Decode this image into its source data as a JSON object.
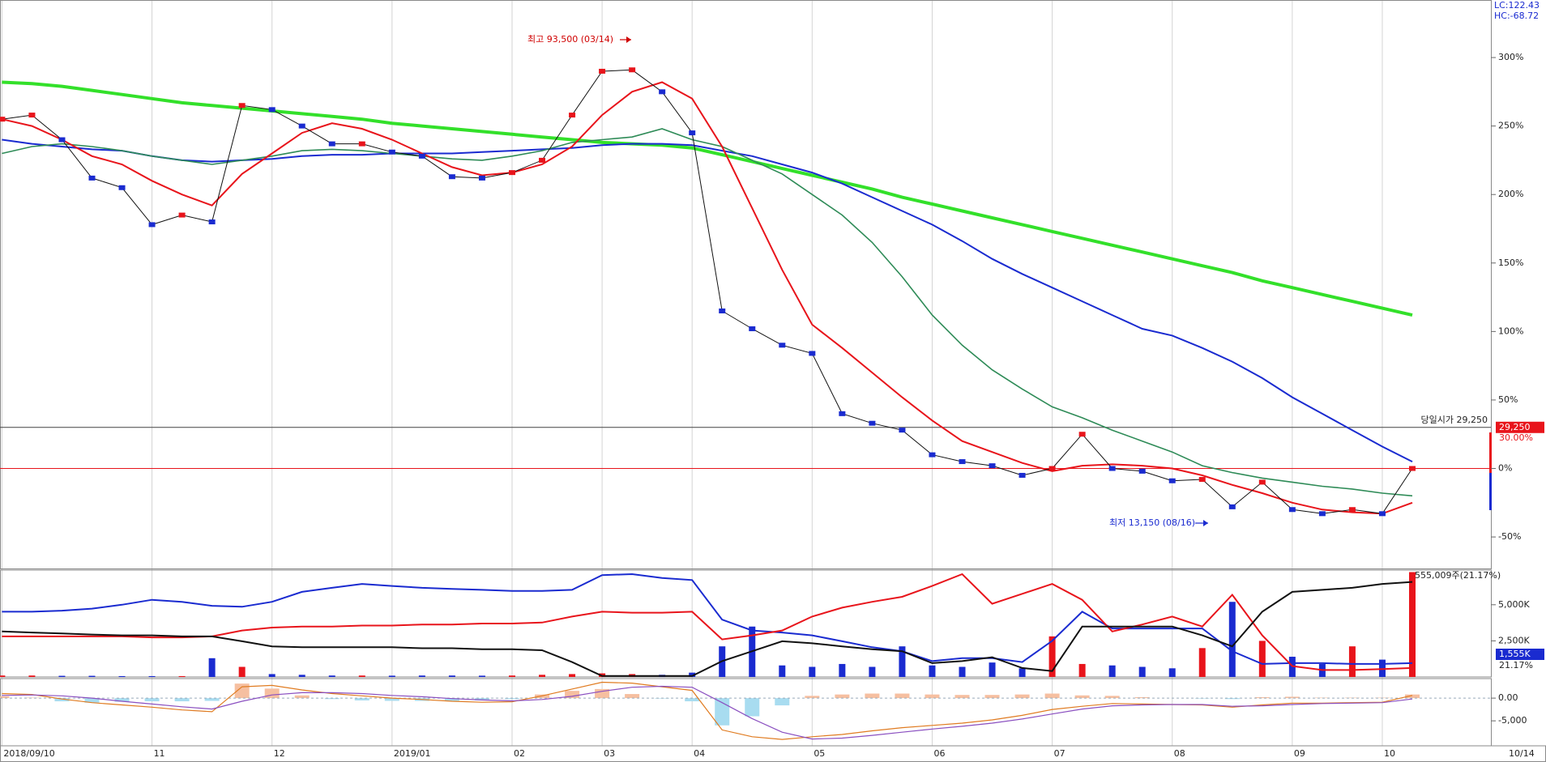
{
  "top_right": {
    "lc": "LC:122.43",
    "hc": "HC:-68.72"
  },
  "x_end_label": "10/14",
  "chart_data": [
    {
      "type": "line",
      "categories": [
        "2018/09/10",
        null,
        null,
        null,
        null,
        "11",
        null,
        null,
        null,
        "12",
        null,
        null,
        null,
        "2019/01",
        null,
        null,
        null,
        "02",
        null,
        null,
        "03",
        null,
        null,
        "04",
        null,
        null,
        null,
        "05",
        null,
        null,
        null,
        "06",
        null,
        null,
        null,
        "07",
        null,
        null,
        null,
        "08",
        null,
        null,
        null,
        "09",
        null,
        null,
        "10",
        null
      ],
      "ylim": [
        -73,
        342
      ],
      "yticks": [
        {
          "value": 300,
          "label": "300%"
        },
        {
          "value": 250,
          "label": "250%"
        },
        {
          "value": 200,
          "label": "200%"
        },
        {
          "value": 150,
          "label": "150%"
        },
        {
          "value": 100,
          "label": "100%"
        },
        {
          "value": 50,
          "label": "50%"
        },
        {
          "value": 0,
          "label": "0%"
        },
        {
          "value": -50,
          "label": "-50%"
        }
      ],
      "x_grid": true,
      "zero_line_color": "#e8141b",
      "up_color": "#e8141b",
      "down_color": "#1a2bd0",
      "series": [
        {
          "color": "#33e02a",
          "line_width": 4,
          "values": [
            282,
            281,
            279,
            276,
            273,
            270,
            267,
            265,
            263,
            261,
            259,
            257,
            255,
            252,
            250,
            248,
            246,
            244,
            242,
            240,
            238,
            237,
            236,
            234,
            229,
            224,
            219,
            214,
            209,
            204,
            198,
            193,
            188,
            183,
            178,
            173,
            168,
            163,
            158,
            153,
            148,
            143,
            137,
            132,
            127,
            122,
            117,
            112
          ]
        },
        {
          "color": "#1a2bd0",
          "line_width": 2,
          "values": [
            240,
            237,
            235,
            233,
            232,
            228,
            225,
            224,
            225,
            226,
            228,
            229,
            229,
            230,
            230,
            230,
            231,
            232,
            233,
            234,
            236,
            237,
            237,
            236,
            232,
            228,
            222,
            216,
            208,
            198,
            188,
            178,
            166,
            153,
            142,
            132,
            122,
            112,
            102,
            97,
            88,
            78,
            66,
            52,
            40,
            28,
            16,
            5
          ]
        },
        {
          "color": "#2e8b57",
          "line_width": 1.6,
          "values": [
            230,
            235,
            237,
            235,
            232,
            228,
            225,
            222,
            225,
            228,
            232,
            233,
            232,
            230,
            228,
            226,
            225,
            228,
            232,
            238,
            240,
            242,
            248,
            240,
            235,
            225,
            215,
            200,
            185,
            165,
            140,
            112,
            90,
            72,
            58,
            45,
            37,
            28,
            20,
            12,
            2,
            -3,
            -7,
            -10,
            -13,
            -15,
            -18,
            -20
          ]
        },
        {
          "color": "#e8141b",
          "line_width": 2,
          "values": [
            255,
            250,
            240,
            228,
            222,
            210,
            200,
            192,
            215,
            230,
            245,
            252,
            248,
            240,
            230,
            220,
            214,
            216,
            222,
            235,
            258,
            275,
            282,
            270,
            235,
            190,
            145,
            105,
            88,
            70,
            52,
            35,
            20,
            12,
            4,
            -2,
            2,
            3,
            2,
            0,
            -5,
            -12,
            -18,
            -25,
            -30,
            -32,
            -33,
            -25
          ]
        },
        {
          "color": "#111111",
          "line_width": 1,
          "markers": true,
          "values": [
            255,
            258,
            240,
            212,
            205,
            178,
            185,
            180,
            265,
            262,
            250,
            237,
            237,
            231,
            228,
            213,
            212,
            216,
            225,
            258,
            290,
            291,
            275,
            245,
            115,
            102,
            90,
            84,
            40,
            33,
            28,
            10,
            5,
            2,
            -5,
            0,
            25,
            0,
            -2,
            -9,
            -8,
            -28,
            -10,
            -30,
            -33,
            -30,
            -33,
            0
          ]
        }
      ],
      "annotations": [
        {
          "text": "최고 93,500 (03/14)",
          "color": "#d00000"
        },
        {
          "text": "최저 13,150 (08/16)",
          "color": "#1a2bd0"
        }
      ],
      "open_line": {
        "value": 30,
        "label": "당일시가 29,250",
        "tag": "29,250",
        "pct": "30.00%"
      }
    },
    {
      "type": "bar",
      "ylim": [
        0,
        7400
      ],
      "yticks": [
        {
          "value": 5000,
          "label": "5,000K"
        },
        {
          "value": 2500,
          "label": "2,500K"
        }
      ],
      "values": [
        100,
        100,
        80,
        80,
        60,
        60,
        60,
        1300,
        700,
        200,
        150,
        100,
        100,
        90,
        100,
        100,
        90,
        100,
        150,
        200,
        250,
        200,
        150,
        300,
        2120,
        3490,
        800,
        700,
        900,
        700,
        2120,
        800,
        700,
        1000,
        600,
        2810,
        900,
        800,
        700,
        600,
        2000,
        5200,
        2500,
        1400,
        900,
        2120,
        1200,
        7260
      ],
      "series": [
        {
          "color": "#1a2bd0",
          "line_width": 2,
          "values": [
            4520,
            4520,
            4590,
            4730,
            5000,
            5340,
            5200,
            4930,
            4860,
            5200,
            5890,
            6170,
            6440,
            6300,
            6170,
            6100,
            6030,
            5960,
            5960,
            6030,
            7050,
            7120,
            6850,
            6710,
            3970,
            3220,
            3080,
            2880,
            2470,
            2060,
            1780,
            1100,
            1300,
            1300,
            1030,
            2500,
            4520,
            3360,
            3360,
            3360,
            3360,
            1780,
            900,
            960,
            960,
            900,
            900,
            960
          ]
        },
        {
          "color": "#e8141b",
          "line_width": 2,
          "values": [
            2810,
            2810,
            2810,
            2810,
            2810,
            2740,
            2740,
            2810,
            3220,
            3420,
            3490,
            3490,
            3560,
            3560,
            3630,
            3630,
            3700,
            3700,
            3770,
            4180,
            4520,
            4450,
            4450,
            4520,
            2600,
            2880,
            3220,
            4180,
            4800,
            5200,
            5550,
            6300,
            7120,
            5070,
            5760,
            6440,
            5340,
            3150,
            3630,
            4180,
            3490,
            5690,
            2880,
            750,
            480,
            480,
            550,
            620
          ]
        },
        {
          "color": "#111111",
          "line_width": 2,
          "values": [
            3150,
            3080,
            3010,
            2940,
            2880,
            2880,
            2810,
            2810,
            2470,
            2120,
            2060,
            2060,
            2060,
            2060,
            1990,
            1990,
            1920,
            1920,
            1850,
            1030,
            70,
            70,
            70,
            70,
            1100,
            1780,
            2470,
            2330,
            2120,
            1920,
            1780,
            960,
            1100,
            1370,
            620,
            410,
            3490,
            3490,
            3490,
            3490,
            2880,
            2120,
            4520,
            5890,
            6030,
            6170,
            6440,
            6580
          ]
        }
      ],
      "annotations": [
        "555,009주(21.17%)",
        "1,555K",
        "21.17%"
      ]
    },
    {
      "type": "line",
      "ylim": [
        -10500,
        4300
      ],
      "yticks": [
        {
          "value": 0,
          "label": "0.00"
        },
        {
          "value": -5000,
          "label": "-5,000"
        }
      ],
      "histogram": [
        400,
        100,
        -700,
        -1000,
        -800,
        -700,
        -700,
        -600,
        3200,
        2100,
        600,
        -200,
        -500,
        -600,
        -600,
        -600,
        -500,
        -200,
        800,
        1600,
        2000,
        900,
        -100,
        -700,
        -6000,
        -4000,
        -1600,
        500,
        800,
        1000,
        1000,
        800,
        700,
        700,
        800,
        1000,
        600,
        500,
        200,
        0,
        -100,
        -200,
        200,
        300,
        100,
        100,
        100,
        800
      ],
      "hist_up_color": "#f6bfa0",
      "hist_down_color": "#a8dcf0",
      "series": [
        {
          "color": "#e07b20",
          "line_width": 1.2,
          "values": [
            1000,
            800,
            -200,
            -1000,
            -1500,
            -2000,
            -2600,
            -3000,
            2500,
            2800,
            1800,
            1000,
            500,
            0,
            -300,
            -700,
            -900,
            -800,
            500,
            2000,
            3500,
            3300,
            2500,
            1700,
            -7000,
            -8500,
            -9100,
            -8500,
            -8000,
            -7200,
            -6500,
            -6000,
            -5500,
            -4800,
            -3800,
            -2500,
            -1800,
            -1200,
            -1300,
            -1400,
            -1500,
            -2000,
            -1500,
            -1100,
            -1100,
            -1000,
            -900,
            600
          ]
        },
        {
          "color": "#8a4fc0",
          "line_width": 1.2,
          "values": [
            600,
            700,
            500,
            0,
            -700,
            -1300,
            -1900,
            -2400,
            -700,
            700,
            1200,
            1200,
            1000,
            600,
            300,
            -100,
            -400,
            -600,
            -300,
            400,
            1500,
            2400,
            2600,
            2400,
            -1000,
            -4500,
            -7500,
            -9000,
            -8800,
            -8200,
            -7500,
            -6800,
            -6200,
            -5500,
            -4600,
            -3500,
            -2400,
            -1700,
            -1500,
            -1400,
            -1400,
            -1800,
            -1700,
            -1400,
            -1200,
            -1100,
            -1000,
            -200
          ]
        }
      ]
    }
  ]
}
